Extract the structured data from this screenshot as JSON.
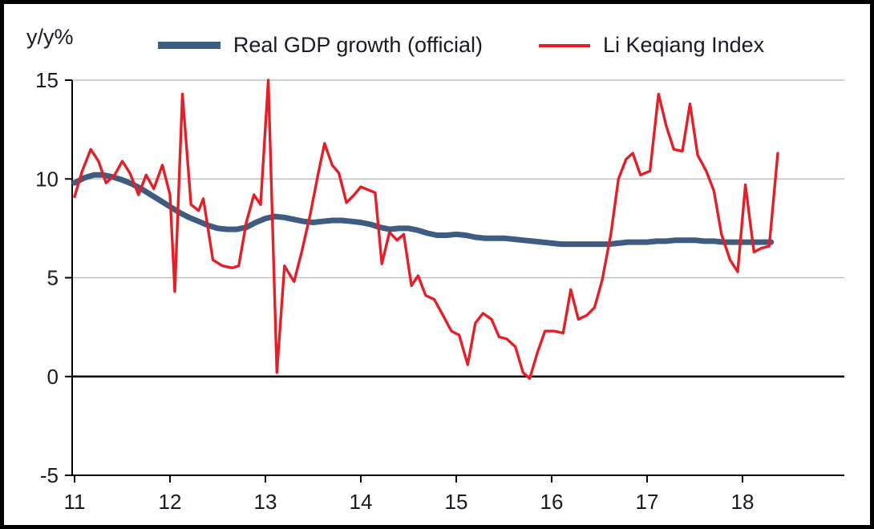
{
  "chart_data": {
    "type": "line",
    "title": "",
    "ylabel": "y/y%",
    "xlabel": "",
    "ylim": [
      -5,
      15
    ],
    "xlim": [
      11,
      19
    ],
    "yticks": [
      15,
      10,
      5,
      0,
      -5
    ],
    "xticks": [
      11,
      12,
      13,
      14,
      15,
      16,
      17,
      18
    ],
    "grid": "horizontal",
    "legend_position": "top-center",
    "axis_color": "#000000",
    "gridline_color": "#b5b5b5",
    "series": [
      {
        "id": "gdp",
        "name": "Real GDP growth (official)",
        "color": "#3e5c80",
        "width": 7,
        "points": [
          [
            11.0,
            9.8
          ],
          [
            11.1,
            10.05
          ],
          [
            11.2,
            10.2
          ],
          [
            11.3,
            10.2
          ],
          [
            11.4,
            10.1
          ],
          [
            11.5,
            9.95
          ],
          [
            11.6,
            9.75
          ],
          [
            11.7,
            9.5
          ],
          [
            11.8,
            9.2
          ],
          [
            11.9,
            8.9
          ],
          [
            12.0,
            8.6
          ],
          [
            12.1,
            8.3
          ],
          [
            12.2,
            8.05
          ],
          [
            12.3,
            7.85
          ],
          [
            12.4,
            7.65
          ],
          [
            12.5,
            7.5
          ],
          [
            12.6,
            7.45
          ],
          [
            12.7,
            7.45
          ],
          [
            12.8,
            7.55
          ],
          [
            12.9,
            7.8
          ],
          [
            13.0,
            8.0
          ],
          [
            13.1,
            8.1
          ],
          [
            13.2,
            8.05
          ],
          [
            13.3,
            7.95
          ],
          [
            13.4,
            7.85
          ],
          [
            13.5,
            7.8
          ],
          [
            13.6,
            7.85
          ],
          [
            13.7,
            7.9
          ],
          [
            13.8,
            7.9
          ],
          [
            13.9,
            7.85
          ],
          [
            14.0,
            7.8
          ],
          [
            14.1,
            7.7
          ],
          [
            14.2,
            7.55
          ],
          [
            14.3,
            7.45
          ],
          [
            14.4,
            7.5
          ],
          [
            14.5,
            7.5
          ],
          [
            14.6,
            7.4
          ],
          [
            14.7,
            7.25
          ],
          [
            14.8,
            7.15
          ],
          [
            14.9,
            7.15
          ],
          [
            15.0,
            7.2
          ],
          [
            15.1,
            7.15
          ],
          [
            15.2,
            7.05
          ],
          [
            15.3,
            7.0
          ],
          [
            15.4,
            7.0
          ],
          [
            15.5,
            7.0
          ],
          [
            15.6,
            6.95
          ],
          [
            15.7,
            6.9
          ],
          [
            15.8,
            6.85
          ],
          [
            15.9,
            6.8
          ],
          [
            16.0,
            6.75
          ],
          [
            16.1,
            6.7
          ],
          [
            16.2,
            6.7
          ],
          [
            16.3,
            6.7
          ],
          [
            16.4,
            6.7
          ],
          [
            16.5,
            6.7
          ],
          [
            16.6,
            6.7
          ],
          [
            16.7,
            6.75
          ],
          [
            16.8,
            6.8
          ],
          [
            16.9,
            6.8
          ],
          [
            17.0,
            6.8
          ],
          [
            17.1,
            6.85
          ],
          [
            17.2,
            6.85
          ],
          [
            17.3,
            6.9
          ],
          [
            17.4,
            6.9
          ],
          [
            17.5,
            6.9
          ],
          [
            17.6,
            6.85
          ],
          [
            17.7,
            6.85
          ],
          [
            17.8,
            6.8
          ],
          [
            17.9,
            6.8
          ],
          [
            18.0,
            6.8
          ],
          [
            18.1,
            6.8
          ],
          [
            18.2,
            6.8
          ],
          [
            18.3,
            6.8
          ]
        ]
      },
      {
        "id": "lkq",
        "name": "Li Keqiang Index",
        "color": "#e41f27",
        "width": 3.4,
        "points": [
          [
            11.0,
            9.1
          ],
          [
            11.08,
            10.4
          ],
          [
            11.17,
            11.5
          ],
          [
            11.25,
            10.9
          ],
          [
            11.33,
            9.8
          ],
          [
            11.42,
            10.2
          ],
          [
            11.5,
            10.9
          ],
          [
            11.58,
            10.3
          ],
          [
            11.67,
            9.2
          ],
          [
            11.75,
            10.2
          ],
          [
            11.83,
            9.5
          ],
          [
            11.92,
            10.7
          ],
          [
            12.0,
            9.2
          ],
          [
            12.05,
            4.3
          ],
          [
            12.13,
            14.3
          ],
          [
            12.22,
            8.7
          ],
          [
            12.3,
            8.4
          ],
          [
            12.35,
            9.0
          ],
          [
            12.45,
            5.9
          ],
          [
            12.55,
            5.6
          ],
          [
            12.65,
            5.5
          ],
          [
            12.72,
            5.6
          ],
          [
            12.8,
            7.8
          ],
          [
            12.88,
            9.2
          ],
          [
            12.95,
            8.7
          ],
          [
            13.03,
            15.0
          ],
          [
            13.12,
            0.2
          ],
          [
            13.2,
            5.6
          ],
          [
            13.3,
            4.8
          ],
          [
            13.38,
            6.3
          ],
          [
            13.47,
            8.2
          ],
          [
            13.55,
            10.2
          ],
          [
            13.62,
            11.8
          ],
          [
            13.7,
            10.7
          ],
          [
            13.77,
            10.3
          ],
          [
            13.85,
            8.8
          ],
          [
            13.93,
            9.2
          ],
          [
            14.0,
            9.6
          ],
          [
            14.1,
            9.4
          ],
          [
            14.15,
            9.3
          ],
          [
            14.22,
            5.7
          ],
          [
            14.3,
            7.3
          ],
          [
            14.38,
            6.9
          ],
          [
            14.45,
            7.2
          ],
          [
            14.53,
            4.6
          ],
          [
            14.6,
            5.1
          ],
          [
            14.68,
            4.1
          ],
          [
            14.77,
            3.9
          ],
          [
            14.85,
            3.2
          ],
          [
            14.95,
            2.3
          ],
          [
            15.03,
            2.1
          ],
          [
            15.12,
            0.6
          ],
          [
            15.2,
            2.7
          ],
          [
            15.28,
            3.2
          ],
          [
            15.37,
            2.9
          ],
          [
            15.45,
            2.0
          ],
          [
            15.53,
            1.9
          ],
          [
            15.62,
            1.5
          ],
          [
            15.7,
            0.2
          ],
          [
            15.77,
            -0.1
          ],
          [
            15.85,
            1.2
          ],
          [
            15.93,
            2.3
          ],
          [
            16.03,
            2.3
          ],
          [
            16.12,
            2.2
          ],
          [
            16.2,
            4.4
          ],
          [
            16.28,
            2.9
          ],
          [
            16.37,
            3.1
          ],
          [
            16.45,
            3.5
          ],
          [
            16.53,
            4.9
          ],
          [
            16.62,
            7.2
          ],
          [
            16.7,
            10.0
          ],
          [
            16.78,
            11.0
          ],
          [
            16.85,
            11.3
          ],
          [
            16.93,
            10.2
          ],
          [
            17.03,
            10.4
          ],
          [
            17.12,
            14.3
          ],
          [
            17.2,
            12.7
          ],
          [
            17.28,
            11.5
          ],
          [
            17.37,
            11.4
          ],
          [
            17.45,
            13.8
          ],
          [
            17.53,
            11.2
          ],
          [
            17.62,
            10.4
          ],
          [
            17.7,
            9.4
          ],
          [
            17.78,
            7.2
          ],
          [
            17.87,
            5.9
          ],
          [
            17.95,
            5.3
          ],
          [
            18.03,
            9.7
          ],
          [
            18.12,
            6.3
          ],
          [
            18.2,
            6.5
          ],
          [
            18.28,
            6.6
          ],
          [
            18.37,
            11.3
          ]
        ]
      }
    ]
  }
}
